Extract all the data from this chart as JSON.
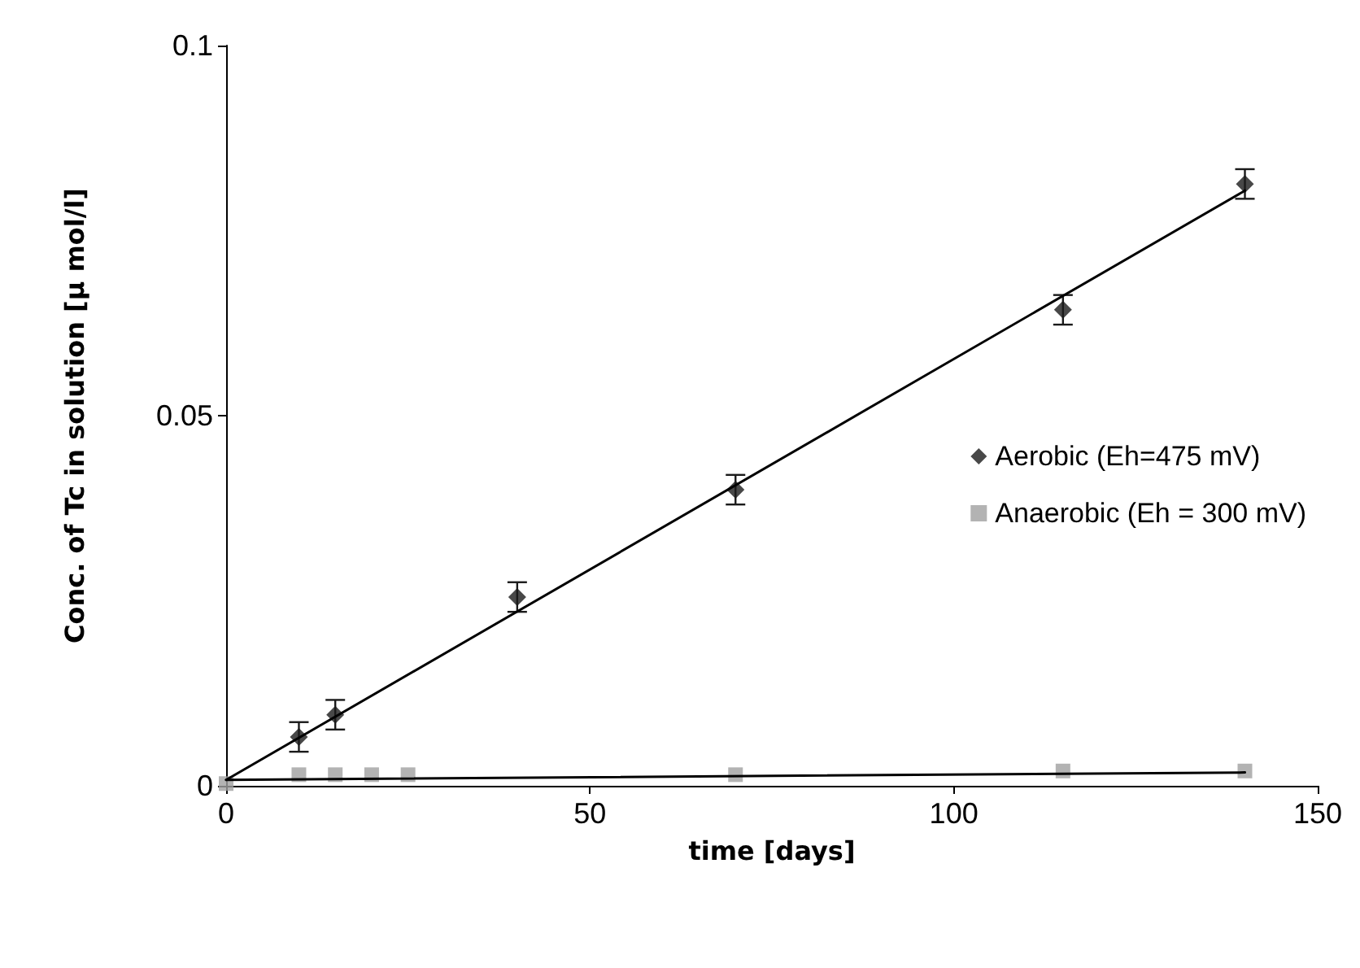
{
  "chart_data": {
    "type": "scatter",
    "xlabel": "time [days]",
    "ylabel": "Conc. of Tc in solution [μ mol/l]",
    "series": [
      {
        "name": "Aerobic (Eh=475 mV)",
        "color": "#1a1a1a",
        "marker": "diamond",
        "x": [
          10,
          15,
          40,
          70,
          115,
          140
        ],
        "values": [
          0.0066,
          0.0096,
          0.0255,
          0.04,
          0.0643,
          0.0813
        ],
        "errors": [
          0.002,
          0.002,
          0.002,
          0.002,
          0.002,
          0.002
        ]
      },
      {
        "name": "Anaerobic (Eh = 300 mV)",
        "color": "#a0a0a0",
        "marker": "square",
        "x": [
          0,
          10,
          15,
          20,
          25,
          70,
          115,
          140
        ],
        "values": [
          0.0003,
          0.0015,
          0.0015,
          0.0015,
          0.0015,
          0.0015,
          0.002,
          0.002
        ]
      },
      {
        "type": "line",
        "color": "#000000",
        "marker": "none",
        "x": [
          0,
          140
        ],
        "values": [
          0.0008,
          0.0804
        ]
      },
      {
        "type": "line",
        "color": "#000000",
        "marker": "none",
        "x": [
          0,
          140
        ],
        "values": [
          0.0008,
          0.0018
        ]
      }
    ],
    "xlim": [
      0,
      150
    ],
    "xticks": [
      0,
      50,
      100,
      150
    ],
    "ylim": [
      0,
      0.1
    ],
    "yticks": [
      0,
      0.05,
      0.1
    ],
    "grid": false,
    "legend": "right"
  }
}
